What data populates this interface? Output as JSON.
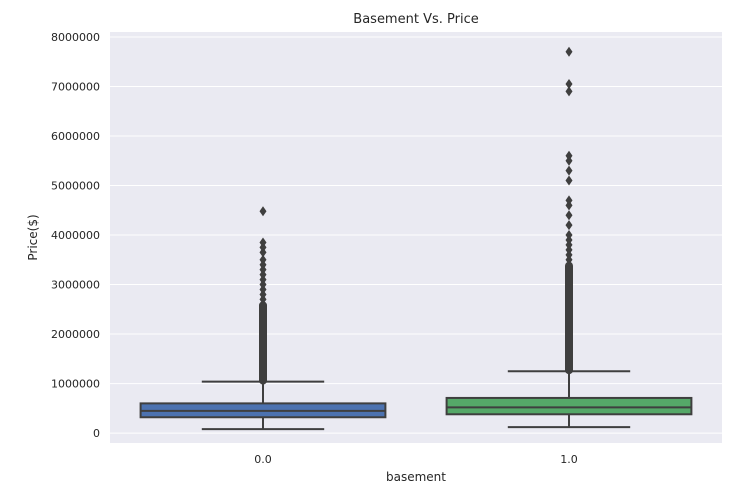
{
  "chart_data": {
    "type": "boxplot",
    "title": "Basement Vs. Price",
    "xlabel": "basement",
    "ylabel": "Price($)",
    "ylim": [
      -200000,
      8100000
    ],
    "yticks": [
      0,
      1000000,
      2000000,
      3000000,
      4000000,
      5000000,
      6000000,
      7000000,
      8000000
    ],
    "yticklabels": [
      "0",
      "1000000",
      "2000000",
      "3000000",
      "4000000",
      "5000000",
      "6000000",
      "7000000",
      "8000000"
    ],
    "grid": true,
    "categories": [
      "0.0",
      "1.0"
    ],
    "boxes": [
      {
        "category": "0.0",
        "color": "#4c72b0",
        "whisker_low": 80000,
        "q1": 320000,
        "median": 450000,
        "q3": 600000,
        "whisker_high": 1040000,
        "outlier_dense_range": [
          1040000,
          2600000
        ],
        "outliers": [
          2700000,
          2800000,
          2900000,
          3000000,
          3100000,
          3200000,
          3300000,
          3400000,
          3500000,
          3650000,
          3750000,
          3850000,
          4480000
        ]
      },
      {
        "category": "1.0",
        "color": "#55a868",
        "whisker_low": 120000,
        "q1": 380000,
        "median": 520000,
        "q3": 710000,
        "whisker_high": 1250000,
        "outlier_dense_range": [
          1250000,
          3400000
        ],
        "outliers": [
          3500000,
          3600000,
          3700000,
          3800000,
          3900000,
          4000000,
          4200000,
          4400000,
          4600000,
          4700000,
          5100000,
          5300000,
          5500000,
          5600000,
          6900000,
          7050000,
          7700000
        ]
      }
    ]
  },
  "colors": {
    "plot_background": "#eaeaf2",
    "grid": "#ffffff",
    "line": "#3f3f3f"
  }
}
